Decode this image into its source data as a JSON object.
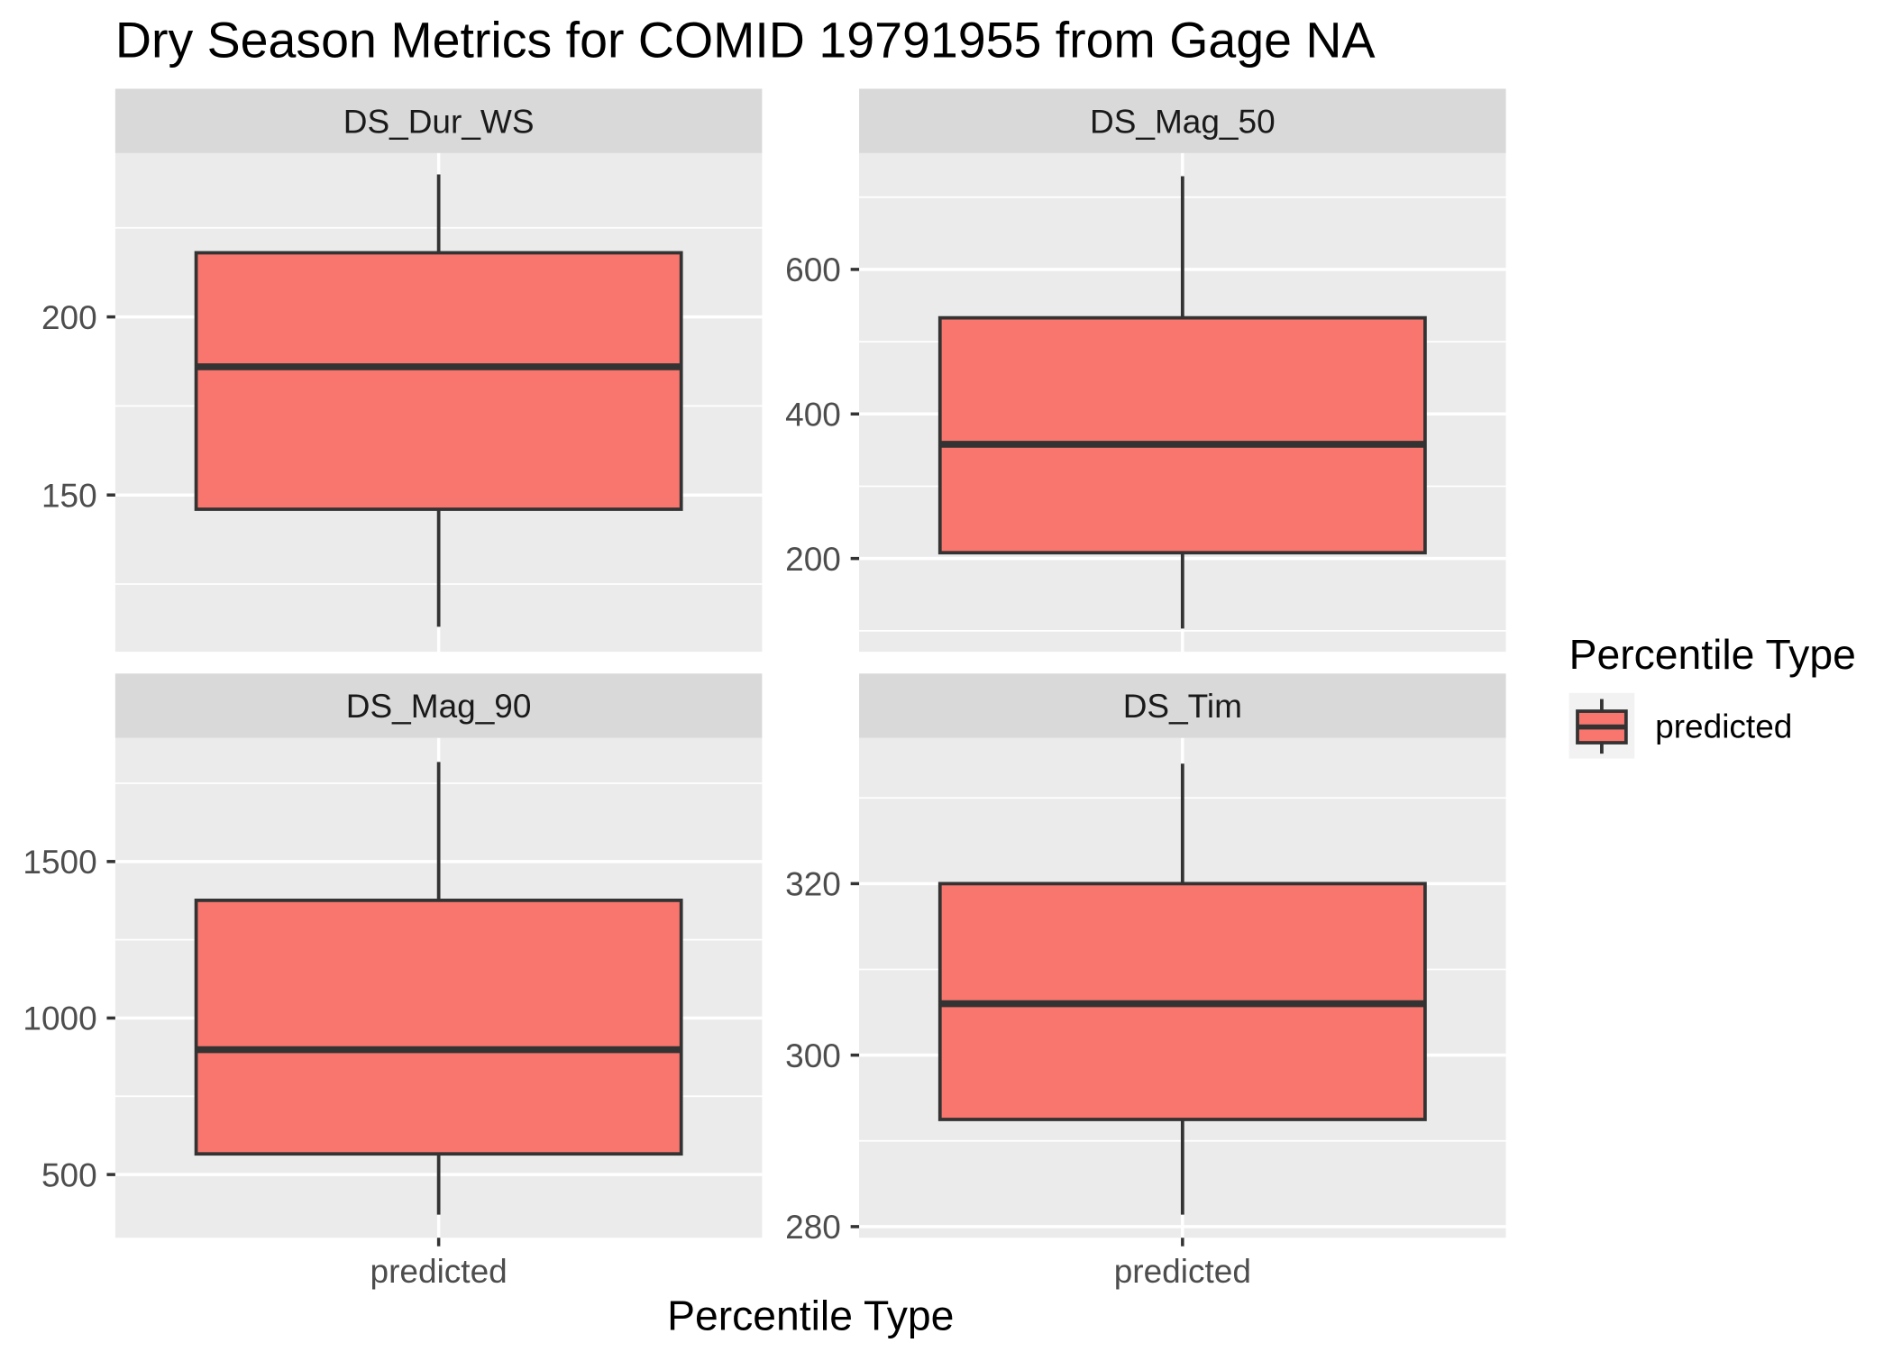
{
  "colors": {
    "fill": "#F8766D",
    "outline": "#333333",
    "panel_background": "#EBEBEB",
    "strip_background": "#D9D9D9",
    "grid": "#FFFFFF",
    "legend_key_background": "#F2F2F2",
    "page_background": "#FFFFFF"
  },
  "chart_data": {
    "type": "box",
    "title": "Dry Season Metrics for COMID 19791955 from Gage NA",
    "xlabel": "Percentile Type",
    "categories": [
      "predicted"
    ],
    "grid": true,
    "legend": {
      "title": "Percentile Type",
      "position": "right",
      "entries": [
        {
          "label": "predicted"
        }
      ]
    },
    "facets": [
      {
        "name": "DS_Dur_WS",
        "ylim": [
          106,
          246
        ],
        "yticks": [
          150,
          200
        ],
        "ytick_labels": [
          "150",
          "200"
        ],
        "box": {
          "min": 113,
          "q1": 146,
          "median": 186,
          "q3": 218,
          "max": 240
        }
      },
      {
        "name": "DS_Mag_50",
        "ylim": [
          71,
          761
        ],
        "yticks": [
          200,
          400,
          600
        ],
        "ytick_labels": [
          "200",
          "400",
          "600"
        ],
        "box": {
          "min": 103,
          "q1": 208,
          "median": 358,
          "q3": 533,
          "max": 729
        }
      },
      {
        "name": "DS_Mag_90",
        "ylim": [
          298,
          1895
        ],
        "yticks": [
          500,
          1000,
          1500
        ],
        "ytick_labels": [
          "500",
          "1000",
          "1500"
        ],
        "box": {
          "min": 372,
          "q1": 566,
          "median": 899,
          "q3": 1376,
          "max": 1818
        }
      },
      {
        "name": "DS_Tim",
        "ylim": [
          278.7,
          337
        ],
        "yticks": [
          280,
          300,
          320
        ],
        "ytick_labels": [
          "280",
          "300",
          "320"
        ],
        "box": {
          "min": 281.4,
          "q1": 292.5,
          "median": 306,
          "q3": 320,
          "max": 334
        }
      }
    ]
  }
}
